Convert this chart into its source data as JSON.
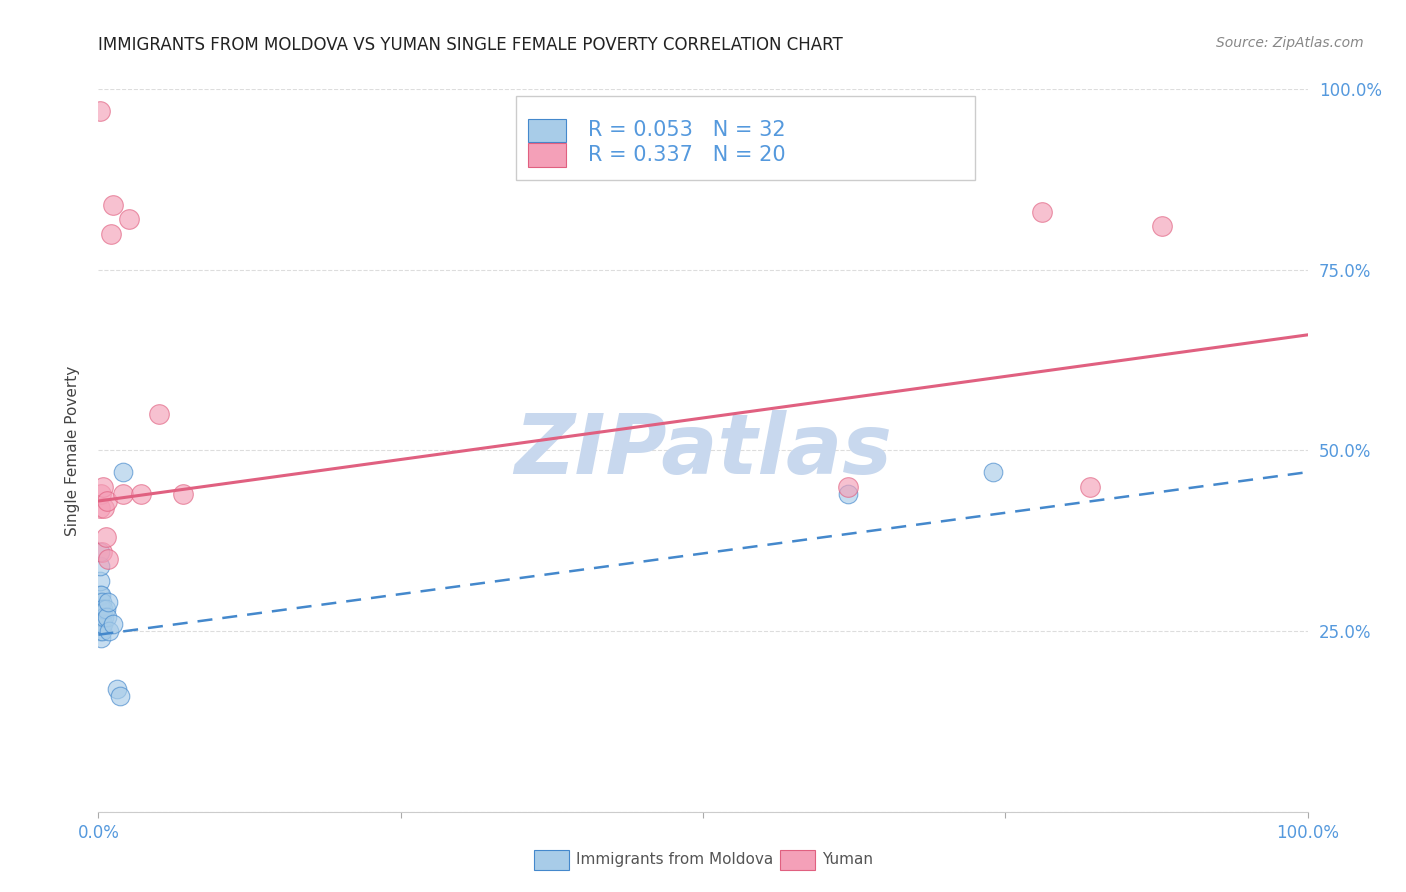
{
  "title": "IMMIGRANTS FROM MOLDOVA VS YUMAN SINGLE FEMALE POVERTY CORRELATION CHART",
  "source": "Source: ZipAtlas.com",
  "ylabel": "Single Female Poverty",
  "legend_blue_r": "0.053",
  "legend_blue_n": "32",
  "legend_pink_r": "0.337",
  "legend_pink_n": "20",
  "legend_blue_label": "Immigrants from Moldova",
  "legend_pink_label": "Yuman",
  "blue_color": "#a8cce8",
  "pink_color": "#f4a0b8",
  "trendline_blue_color": "#4488cc",
  "trendline_pink_color": "#e06080",
  "watermark": "ZIPatlas",
  "blue_x": [
    0.001,
    0.001,
    0.001,
    0.001,
    0.001,
    0.001,
    0.001,
    0.001,
    0.0015,
    0.0015,
    0.002,
    0.002,
    0.002,
    0.002,
    0.002,
    0.003,
    0.003,
    0.003,
    0.003,
    0.004,
    0.004,
    0.005,
    0.006,
    0.007,
    0.008,
    0.009,
    0.012,
    0.015,
    0.018,
    0.02,
    0.62,
    0.74
  ],
  "blue_y": [
    0.26,
    0.27,
    0.28,
    0.29,
    0.3,
    0.32,
    0.34,
    0.36,
    0.25,
    0.27,
    0.24,
    0.26,
    0.27,
    0.28,
    0.3,
    0.25,
    0.26,
    0.27,
    0.29,
    0.26,
    0.28,
    0.27,
    0.28,
    0.27,
    0.29,
    0.25,
    0.26,
    0.17,
    0.16,
    0.47,
    0.44,
    0.47
  ],
  "pink_x": [
    0.001,
    0.001,
    0.002,
    0.003,
    0.004,
    0.005,
    0.006,
    0.007,
    0.008,
    0.01,
    0.012,
    0.02,
    0.025,
    0.035,
    0.05,
    0.07,
    0.62,
    0.78,
    0.82,
    0.88
  ],
  "pink_y": [
    0.97,
    0.42,
    0.44,
    0.36,
    0.45,
    0.42,
    0.38,
    0.43,
    0.35,
    0.8,
    0.84,
    0.44,
    0.82,
    0.44,
    0.55,
    0.44,
    0.45,
    0.83,
    0.45,
    0.81
  ],
  "blue_trend_x0": 0.0,
  "blue_trend_y0": 0.245,
  "blue_trend_x1": 1.0,
  "blue_trend_y1": 0.47,
  "pink_trend_x0": 0.0,
  "pink_trend_y0": 0.43,
  "pink_trend_x1": 1.0,
  "pink_trend_y1": 0.66,
  "xlim": [
    0.0,
    1.0
  ],
  "ylim": [
    0.0,
    1.0
  ],
  "yticks": [
    0.0,
    0.25,
    0.5,
    0.75,
    1.0
  ],
  "ytick_labels_right": [
    "",
    "25.0%",
    "50.0%",
    "75.0%",
    "100.0%"
  ],
  "xtick_positions": [
    0.0,
    0.25,
    0.5,
    0.75,
    1.0
  ],
  "tick_color": "#5599dd",
  "grid_color": "#dddddd",
  "background_color": "#ffffff",
  "title_fontsize": 12,
  "ylabel_fontsize": 11,
  "tick_fontsize": 12,
  "legend_fontsize": 15,
  "source_fontsize": 10,
  "watermark_color": "#c8d8ee",
  "watermark_fontsize": 60
}
